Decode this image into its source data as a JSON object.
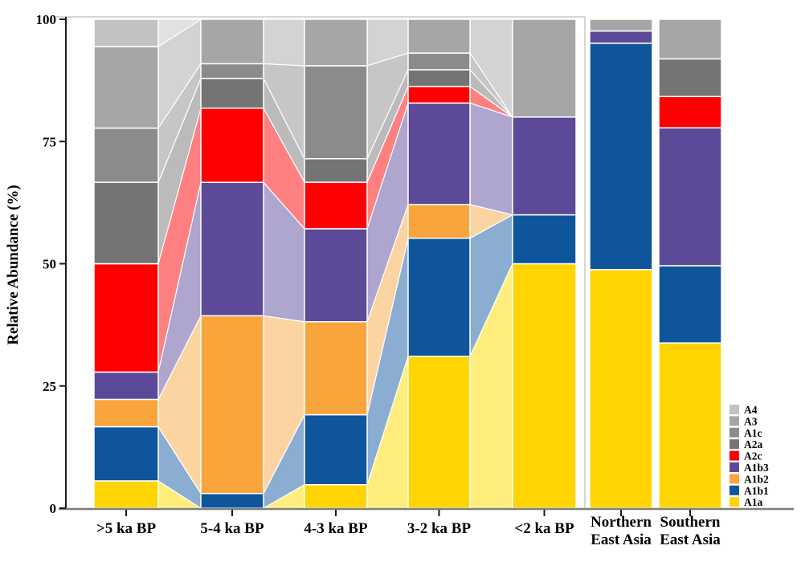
{
  "chart_data": {
    "type": "area",
    "variant": "alluvial-stacked-bars",
    "title": "",
    "ylabel": "Relative Abundance (%)",
    "xlabel": "",
    "ylim": [
      0,
      100
    ],
    "yticks": [
      0,
      25,
      50,
      75,
      100
    ],
    "categories": [
      ">5 ka BP",
      "5-4 ka BP",
      "4-3 ka BP",
      "3-2 ka BP",
      "<2 ka BP",
      "Northern East Asia",
      "Southern East Asia"
    ],
    "category_labels": [
      [
        ">5 ka BP"
      ],
      [
        "5-4 ka BP"
      ],
      [
        "4-3 ka BP"
      ],
      [
        "3-2 ka BP"
      ],
      [
        "<2 ka BP"
      ],
      [
        "Northern",
        "East Asia"
      ],
      [
        "Southern",
        "East Asia"
      ]
    ],
    "flows_between_columns": [
      true,
      true,
      true,
      true,
      false,
      false
    ],
    "series": [
      {
        "name": "A1a",
        "color": "#FFD400",
        "light_color": "#FFEE7D",
        "values": [
          5.6,
          0.0,
          4.8,
          31.0,
          50.0,
          48.8,
          33.8
        ]
      },
      {
        "name": "A1b1",
        "color": "#0F559C",
        "light_color": "#8BADD1",
        "values": [
          11.1,
          3.0,
          14.3,
          24.1,
          10.0,
          46.3,
          15.8
        ]
      },
      {
        "name": "A1b2",
        "color": "#FAA43C",
        "light_color": "#FCD4A1",
        "values": [
          5.6,
          36.4,
          19.0,
          6.9,
          0.0,
          0.0,
          0.0
        ]
      },
      {
        "name": "A1b3",
        "color": "#5C4997",
        "light_color": "#AEA6CF",
        "values": [
          5.6,
          27.3,
          19.0,
          20.7,
          20.0,
          2.5,
          28.2
        ]
      },
      {
        "name": "A2c",
        "color": "#FF0000",
        "light_color": "#FF8080",
        "values": [
          22.2,
          15.2,
          9.5,
          3.4,
          0.0,
          0.0,
          6.4
        ]
      },
      {
        "name": "A2a",
        "color": "#747474",
        "light_color": "#BBBBBB",
        "values": [
          16.7,
          6.1,
          4.8,
          3.4,
          0.0,
          0.0,
          7.7
        ]
      },
      {
        "name": "A1c",
        "color": "#8B8B8B",
        "light_color": "#C6C6C6",
        "values": [
          11.1,
          3.0,
          19.0,
          3.4,
          0.0,
          0.0,
          0.0
        ]
      },
      {
        "name": "A3",
        "color": "#A6A6A6",
        "light_color": "#D3D3D3",
        "values": [
          16.7,
          9.1,
          9.5,
          6.9,
          20.0,
          2.4,
          8.1
        ]
      },
      {
        "name": "A4",
        "color": "#C2C2C2",
        "light_color": "#E1E1E1",
        "values": [
          5.6,
          0.0,
          0.0,
          0.0,
          0.0,
          0.0,
          0.0
        ]
      }
    ],
    "legend": {
      "position": "right",
      "items": [
        "A4",
        "A3",
        "A1c",
        "A2a",
        "A2c",
        "A1b3",
        "A1b2",
        "A1b1",
        "A1a"
      ]
    },
    "grid": false
  }
}
